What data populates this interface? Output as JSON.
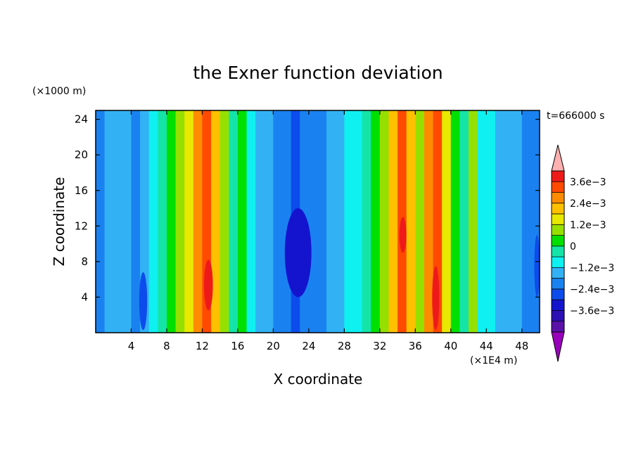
{
  "chart_data": {
    "type": "heatmap",
    "title": "the Exner function deviation",
    "xlabel": "X coordinate",
    "ylabel": "Z coordinate",
    "x_unit": "(×1E4 m)",
    "y_unit": "(×1000 m)",
    "time_label": "t=666000 s",
    "xlim": [
      0,
      50
    ],
    "ylim": [
      0,
      25
    ],
    "x_ticks": [
      4,
      8,
      12,
      16,
      20,
      24,
      28,
      32,
      36,
      40,
      44,
      48
    ],
    "y_ticks": [
      4,
      8,
      12,
      16,
      20,
      24
    ],
    "colorbar": {
      "levels": [
        -0.0042,
        -0.0036,
        -0.003,
        -0.0024,
        -0.0018,
        -0.0012,
        -0.0006,
        0,
        0.0006,
        0.0012,
        0.0018,
        0.0024,
        0.003,
        0.0036,
        0.0042
      ],
      "colors": [
        "#9900bb",
        "#5a12a8",
        "#2d10b4",
        "#1414cf",
        "#0d4cec",
        "#1a82f0",
        "#33b1f5",
        "#0ff0f0",
        "#15e4a8",
        "#00e000",
        "#96e000",
        "#e8e800",
        "#ffc000",
        "#ff8c00",
        "#ff4a00",
        "#ee1a1a",
        "#ffb0b0"
      ],
      "tick_values": [
        0.0036,
        0.0024,
        0.0012,
        0,
        -0.0012,
        -0.0024,
        -0.0036
      ],
      "tick_labels": [
        "3.6e−3",
        "2.4e−3",
        "1.2e−3",
        "0",
        "−1.2e−3",
        "−2.4e−3",
        "−3.6e−3"
      ]
    },
    "columns": [
      {
        "x": 0.5,
        "value": -0.0014
      },
      {
        "x": 1.5,
        "value": -0.0011
      },
      {
        "x": 2.5,
        "value": -0.0009
      },
      {
        "x": 3.5,
        "value": -0.0009
      },
      {
        "x": 4.5,
        "value": -0.0013
      },
      {
        "x": 5.5,
        "value": -0.0007
      },
      {
        "x": 6.5,
        "value": -0.0002
      },
      {
        "x": 7.5,
        "value": 0.0003
      },
      {
        "x": 8.5,
        "value": 0.0008
      },
      {
        "x": 9.5,
        "value": 0.0014
      },
      {
        "x": 10.5,
        "value": 0.0021
      },
      {
        "x": 11.5,
        "value": 0.003
      },
      {
        "x": 12.5,
        "value": 0.0038
      },
      {
        "x": 13.5,
        "value": 0.0027
      },
      {
        "x": 14.5,
        "value": 0.0014
      },
      {
        "x": 15.5,
        "value": 0.0004
      },
      {
        "x": 16.5,
        "value": 0.0008
      },
      {
        "x": 17.5,
        "value": -0.0004
      },
      {
        "x": 18.5,
        "value": -0.001
      },
      {
        "x": 19.5,
        "value": -0.0012
      },
      {
        "x": 20.5,
        "value": -0.0014
      },
      {
        "x": 21.5,
        "value": -0.0016
      },
      {
        "x": 22.5,
        "value": -0.0021
      },
      {
        "x": 23.5,
        "value": -0.0018
      },
      {
        "x": 24.5,
        "value": -0.0014
      },
      {
        "x": 25.5,
        "value": -0.0013
      },
      {
        "x": 26.5,
        "value": -0.001
      },
      {
        "x": 27.5,
        "value": -0.0007
      },
      {
        "x": 28.5,
        "value": -0.0005
      },
      {
        "x": 29.5,
        "value": -0.0002
      },
      {
        "x": 30.5,
        "value": 0.0002
      },
      {
        "x": 31.5,
        "value": 0.0008
      },
      {
        "x": 32.5,
        "value": 0.0015
      },
      {
        "x": 33.5,
        "value": 0.0026
      },
      {
        "x": 34.5,
        "value": 0.0038
      },
      {
        "x": 35.5,
        "value": 0.0024
      },
      {
        "x": 36.5,
        "value": 0.0014
      },
      {
        "x": 37.5,
        "value": 0.003
      },
      {
        "x": 38.5,
        "value": 0.0038
      },
      {
        "x": 39.5,
        "value": 0.002
      },
      {
        "x": 40.5,
        "value": 0.0006
      },
      {
        "x": 41.5,
        "value": 0.0004
      },
      {
        "x": 42.5,
        "value": 0.0014
      },
      {
        "x": 43.5,
        "value": -0.0002
      },
      {
        "x": 44.5,
        "value": -0.0006
      },
      {
        "x": 45.5,
        "value": -0.0009
      },
      {
        "x": 46.5,
        "value": -0.001
      },
      {
        "x": 47.5,
        "value": -0.0012
      },
      {
        "x": 48.5,
        "value": -0.0014
      },
      {
        "x": 49.5,
        "value": -0.0016
      }
    ],
    "features": [
      {
        "x0": 21.3,
        "x1": 24.3,
        "y0": 4,
        "y1": 14,
        "value": -0.0028
      },
      {
        "x0": 4.9,
        "x1": 5.8,
        "y0": 0.3,
        "y1": 6.8,
        "value": -0.0024
      },
      {
        "x0": 12.2,
        "x1": 13.2,
        "y0": 2.5,
        "y1": 8.2,
        "value": 0.0044
      },
      {
        "x0": 34.2,
        "x1": 35.0,
        "y0": 9.0,
        "y1": 13.0,
        "value": 0.0044
      },
      {
        "x0": 37.9,
        "x1": 38.7,
        "y0": 0.3,
        "y1": 7.5,
        "value": 0.0044
      },
      {
        "x0": 49.4,
        "x1": 50.0,
        "y0": 4.0,
        "y1": 11.0,
        "value": -0.0024
      }
    ]
  }
}
